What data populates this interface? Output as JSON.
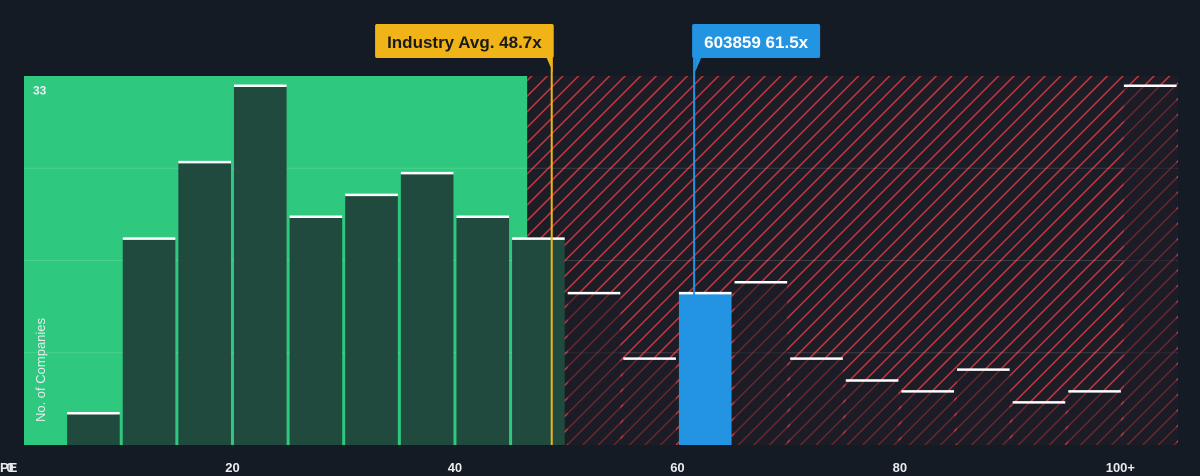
{
  "chart_data": {
    "type": "bar",
    "xlabel": "PE",
    "ylabel": "No. of Companies",
    "x_tick_labels": [
      {
        "value": 0,
        "label": "0"
      },
      {
        "value": 20,
        "label": "20"
      },
      {
        "value": 40,
        "label": "40"
      },
      {
        "value": 60,
        "label": "60"
      },
      {
        "value": 80,
        "label": "80"
      },
      {
        "value": 100,
        "label": "100+"
      }
    ],
    "y_tick_labels": [
      {
        "value": 33,
        "label": "33"
      }
    ],
    "xlim": [
      0,
      105
    ],
    "ylim": [
      0,
      33.8
    ],
    "bin_width": 5,
    "bins": [
      {
        "x0": 0,
        "count": 0
      },
      {
        "x0": 5,
        "count": 3
      },
      {
        "x0": 10,
        "count": 19
      },
      {
        "x0": 15,
        "count": 26
      },
      {
        "x0": 20,
        "count": 33
      },
      {
        "x0": 25,
        "count": 21
      },
      {
        "x0": 30,
        "count": 23
      },
      {
        "x0": 35,
        "count": 25
      },
      {
        "x0": 40,
        "count": 21
      },
      {
        "x0": 45,
        "count": 19
      },
      {
        "x0": 50,
        "count": 14
      },
      {
        "x0": 55,
        "count": 8
      },
      {
        "x0": 60,
        "count": 14
      },
      {
        "x0": 65,
        "count": 15
      },
      {
        "x0": 70,
        "count": 8
      },
      {
        "x0": 75,
        "count": 6
      },
      {
        "x0": 80,
        "count": 5
      },
      {
        "x0": 85,
        "count": 7
      },
      {
        "x0": 90,
        "count": 4
      },
      {
        "x0": 95,
        "count": 5
      },
      {
        "x0": 100,
        "count": 33
      }
    ],
    "fair_zone_end": 46.5,
    "highlight_bin_x0": 60,
    "annotations": [
      {
        "id": "industry",
        "label": "Industry Avg. 48.7x",
        "value": 48.7,
        "color": "#f0b418"
      },
      {
        "id": "company",
        "label": "603859 61.5x",
        "value": 61.5,
        "color": "#2394e2"
      }
    ],
    "colors": {
      "background": "#151b24",
      "fair_zone": "#2ec97f",
      "bar": "#1f4a3d",
      "bar_top": "#ffffff",
      "highlight_bar": "#2394e2",
      "overvalued_hatch": "#c5363e",
      "axis_text": "#e8ecef"
    }
  }
}
